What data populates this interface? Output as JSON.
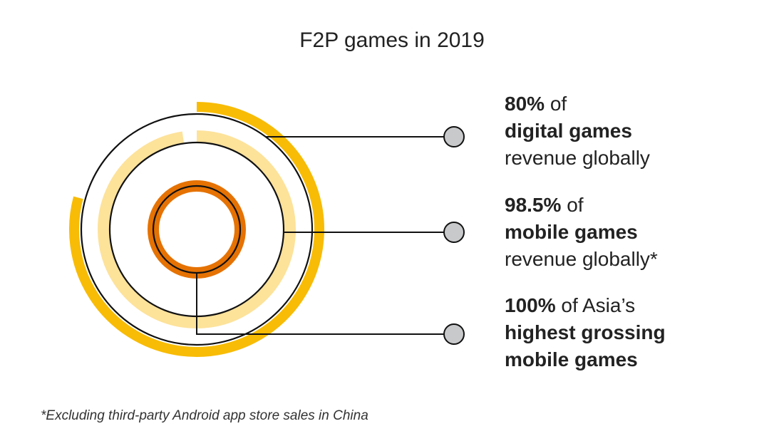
{
  "title": "F2P games in 2019",
  "chart_data": {
    "type": "radial-bar",
    "title": "F2P games in 2019",
    "series": [
      {
        "value": 80,
        "value_text": "80%",
        "connector": "of",
        "subject": "digital games",
        "suffix": "revenue globally",
        "color": "#F8BC06"
      },
      {
        "value": 98.5,
        "value_text": "98.5%",
        "connector": "of",
        "subject": "mobile games",
        "suffix": "revenue globally*",
        "color": "#FDE29A"
      },
      {
        "value": 100,
        "value_text": "100%",
        "connector": "of Asia’s",
        "subject": "highest grossing mobile games",
        "subject_line1": "highest grossing",
        "subject_line2": "mobile games",
        "color": "#E57203"
      }
    ],
    "colors": {
      "line": "#111111",
      "dot_fill": "#C8C9CB",
      "text": "#222222"
    }
  },
  "footnote": "*Excluding third-party Android app store sales in China"
}
